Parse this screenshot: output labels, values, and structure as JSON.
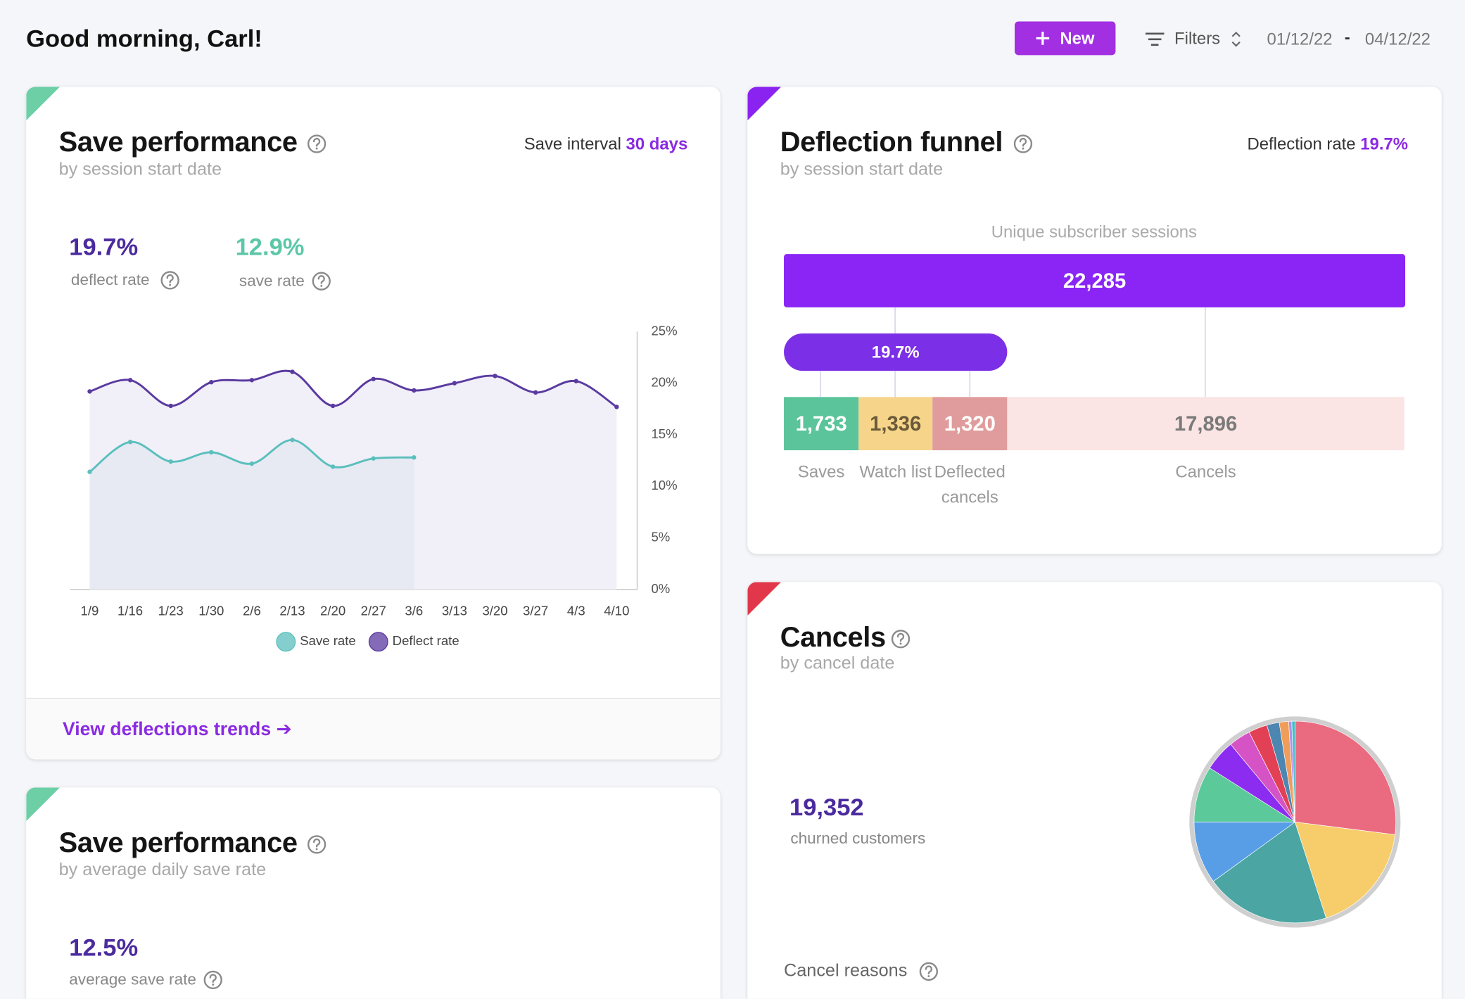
{
  "header": {
    "greeting": "Good morning, Carl!",
    "new_button": "New",
    "filters": "Filters",
    "date_from": "01/12/22",
    "date_separator": "-",
    "date_to": "04/12/22"
  },
  "save_performance": {
    "title": "Save performance",
    "subtitle": "by session start date",
    "interval_label": "Save interval",
    "interval_value": "30 days",
    "stats": [
      {
        "value": "19.7%",
        "label": "deflect rate"
      },
      {
        "value": "12.9%",
        "label": "save rate"
      }
    ],
    "chart_data": {
      "type": "line",
      "categories": [
        "1/9",
        "1/16",
        "1/23",
        "1/30",
        "2/6",
        "2/13",
        "2/20",
        "2/27",
        "3/6",
        "3/13",
        "3/20",
        "3/27",
        "4/3",
        "4/10"
      ],
      "series": [
        {
          "name": "Save rate",
          "color": "#5bbfbd",
          "values": [
            11.4,
            14.3,
            12.4,
            13.3,
            12.2,
            14.5,
            11.9,
            12.7,
            12.8,
            null,
            null,
            null,
            null,
            null
          ]
        },
        {
          "name": "Deflect rate",
          "color": "#5a3aa0",
          "values": [
            19.2,
            20.3,
            17.8,
            20.1,
            20.3,
            21.1,
            17.8,
            20.4,
            19.3,
            20.0,
            20.7,
            19.1,
            20.2,
            17.7
          ]
        }
      ],
      "ylim": [
        0,
        25
      ],
      "yticks": [
        {
          "value": 0,
          "label": "0%"
        },
        {
          "value": 5,
          "label": "5%"
        },
        {
          "value": 10,
          "label": "10%"
        },
        {
          "value": 15,
          "label": "15%"
        },
        {
          "value": 20,
          "label": "20%"
        },
        {
          "value": 25,
          "label": "25%"
        }
      ],
      "grid": false
    },
    "link": "View deflections trends ➔"
  },
  "deflection_funnel": {
    "title": "Deflection funnel",
    "subtitle": "by session start date",
    "rate_label": "Deflection rate",
    "rate_value": "19.7%",
    "caption": "Unique subscriber sessions",
    "total": "22,285",
    "deflection_pill": "19.7%",
    "segments": [
      {
        "value": "1,733",
        "label": "Saves",
        "color": "#5cc49b"
      },
      {
        "value": "1,336",
        "label": "Watch list",
        "color": "#f6d58a"
      },
      {
        "value": "1,320",
        "label": "Deflected cancels",
        "color": "#e09c9c"
      },
      {
        "value": "17,896",
        "label": "Cancels",
        "color": "#fbe4e4"
      }
    ]
  },
  "cancels": {
    "title": "Cancels",
    "subtitle": "by cancel date",
    "stat": {
      "value": "19,352",
      "label": "churned customers"
    },
    "section": "Cancel reasons",
    "chart_data": {
      "type": "pie",
      "values": [
        27,
        18,
        20,
        10,
        9,
        5,
        3.5,
        3,
        2,
        1.5,
        0.5,
        0.5
      ],
      "colors": [
        "#ea6a80",
        "#f6cd6a",
        "#4aa5a3",
        "#579ee6",
        "#5cc99b",
        "#8b2cf0",
        "#d553c4",
        "#e24055",
        "#4d86b0",
        "#f09d5a",
        "#b48ef0",
        "#3fc0c8"
      ]
    }
  },
  "save_performance_daily": {
    "title": "Save performance",
    "subtitle": "by average daily save rate",
    "stat": {
      "value": "12.5%",
      "label": "average save rate"
    }
  }
}
